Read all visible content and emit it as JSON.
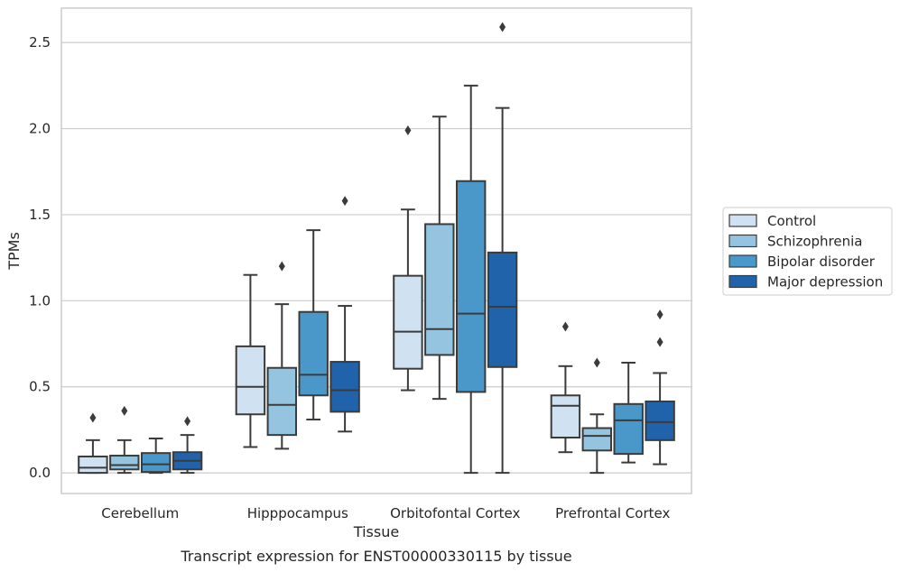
{
  "caption": "Transcript expression for ENST00000330115 by tissue",
  "chart_data": {
    "type": "boxplot",
    "title": "",
    "xlabel": "Tissue",
    "ylabel": "TPMs",
    "ylim": [
      -0.12,
      2.7
    ],
    "yticks": [
      "0.0",
      "0.5",
      "1.0",
      "1.5",
      "2.0",
      "2.5"
    ],
    "grid": "horizontal",
    "legend_position": "right",
    "categories": [
      "Cerebellum",
      "Hipppocampus",
      "Orbitofontal Cortex",
      "Prefrontal Cortex"
    ],
    "series": [
      {
        "name": "Control",
        "color": "#d0e1f2",
        "boxes": [
          {
            "whislo": 0.0,
            "q1": 0.0,
            "med": 0.03,
            "q3": 0.095,
            "whishi": 0.19,
            "fliers": [
              0.32
            ]
          },
          {
            "whislo": 0.15,
            "q1": 0.34,
            "med": 0.5,
            "q3": 0.735,
            "whishi": 1.15,
            "fliers": []
          },
          {
            "whislo": 0.48,
            "q1": 0.605,
            "med": 0.82,
            "q3": 1.145,
            "whishi": 1.53,
            "fliers": [
              1.99
            ]
          },
          {
            "whislo": 0.12,
            "q1": 0.205,
            "med": 0.39,
            "q3": 0.45,
            "whishi": 0.62,
            "fliers": [
              0.85
            ]
          }
        ]
      },
      {
        "name": "Schizophrenia",
        "color": "#94c4df",
        "boxes": [
          {
            "whislo": 0.0,
            "q1": 0.02,
            "med": 0.045,
            "q3": 0.1,
            "whishi": 0.19,
            "fliers": [
              0.36
            ]
          },
          {
            "whislo": 0.14,
            "q1": 0.22,
            "med": 0.395,
            "q3": 0.61,
            "whishi": 0.98,
            "fliers": [
              1.2
            ]
          },
          {
            "whislo": 0.43,
            "q1": 0.685,
            "med": 0.835,
            "q3": 1.445,
            "whishi": 2.07,
            "fliers": []
          },
          {
            "whislo": 0.0,
            "q1": 0.13,
            "med": 0.215,
            "q3": 0.26,
            "whishi": 0.34,
            "fliers": [
              0.64
            ]
          }
        ]
      },
      {
        "name": "Bipolar disorder",
        "color": "#4a98c9",
        "boxes": [
          {
            "whislo": 0.0,
            "q1": 0.005,
            "med": 0.05,
            "q3": 0.115,
            "whishi": 0.2,
            "fliers": []
          },
          {
            "whislo": 0.31,
            "q1": 0.45,
            "med": 0.57,
            "q3": 0.935,
            "whishi": 1.41,
            "fliers": []
          },
          {
            "whislo": 0.0,
            "q1": 0.47,
            "med": 0.925,
            "q3": 1.695,
            "whishi": 2.25,
            "fliers": []
          },
          {
            "whislo": 0.06,
            "q1": 0.11,
            "med": 0.305,
            "q3": 0.4,
            "whishi": 0.64,
            "fliers": []
          }
        ]
      },
      {
        "name": "Major depression",
        "color": "#2163aa",
        "boxes": [
          {
            "whislo": 0.0,
            "q1": 0.02,
            "med": 0.07,
            "q3": 0.12,
            "whishi": 0.22,
            "fliers": [
              0.3
            ]
          },
          {
            "whislo": 0.24,
            "q1": 0.355,
            "med": 0.48,
            "q3": 0.645,
            "whishi": 0.97,
            "fliers": [
              1.58
            ]
          },
          {
            "whislo": 0.0,
            "q1": 0.615,
            "med": 0.965,
            "q3": 1.28,
            "whishi": 2.12,
            "fliers": [
              2.59
            ]
          },
          {
            "whislo": 0.05,
            "q1": 0.19,
            "med": 0.295,
            "q3": 0.415,
            "whishi": 0.58,
            "fliers": [
              0.76,
              0.92
            ]
          }
        ]
      }
    ]
  }
}
